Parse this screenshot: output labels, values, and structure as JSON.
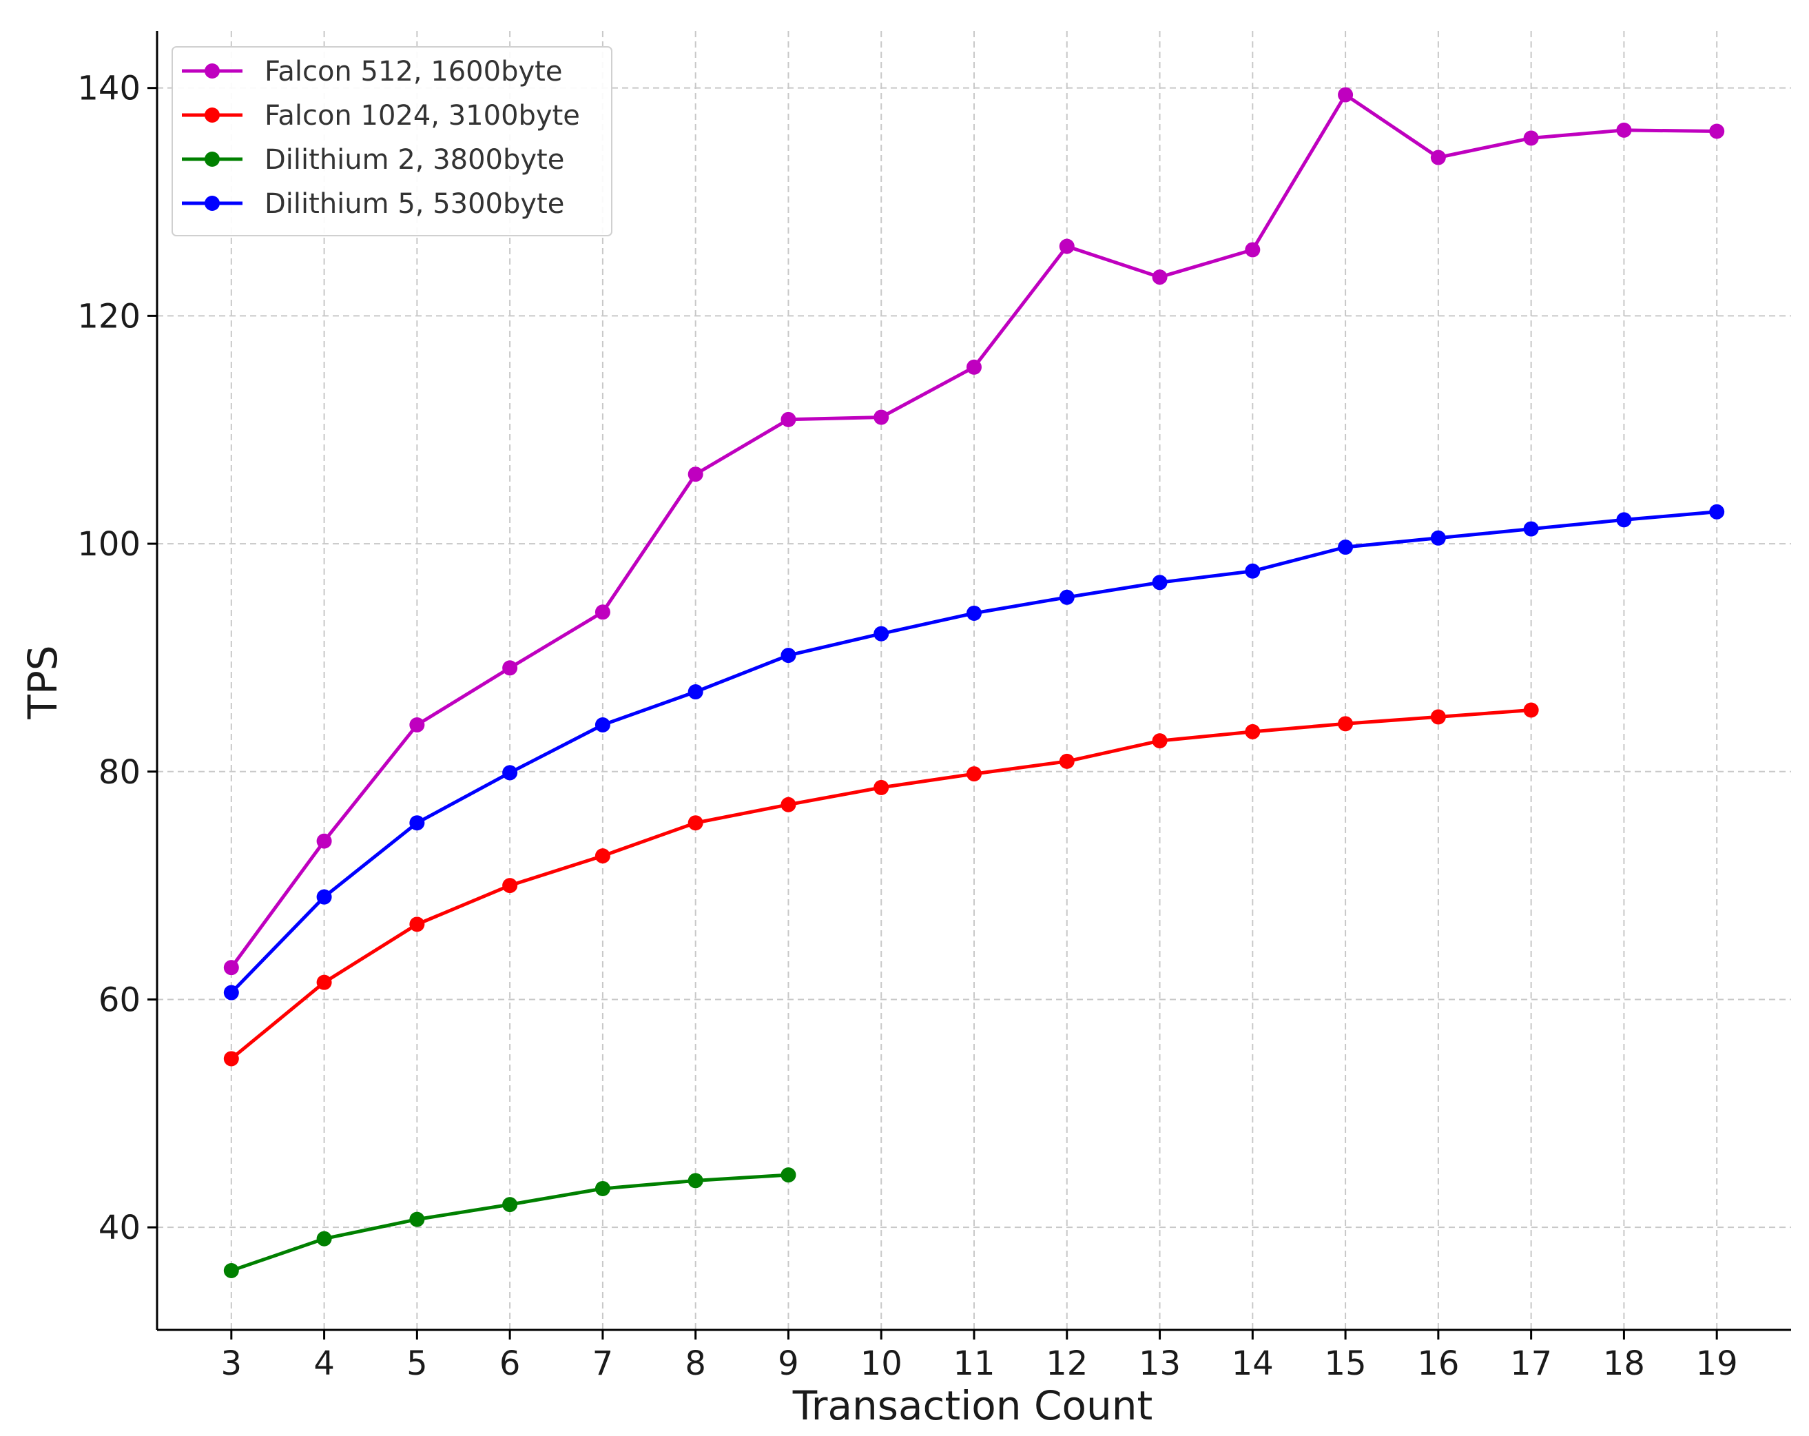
{
  "chart_data": {
    "type": "line",
    "title": "",
    "xlabel": "Transaction Count",
    "ylabel": "TPS",
    "x_ticks": [
      3,
      4,
      5,
      6,
      7,
      8,
      9,
      10,
      11,
      12,
      13,
      14,
      15,
      16,
      17,
      18,
      19
    ],
    "y_ticks": [
      40,
      60,
      80,
      100,
      120,
      140
    ],
    "xlim": [
      2.2,
      19.8
    ],
    "ylim": [
      31,
      145
    ],
    "grid": true,
    "legend_position": "top-left",
    "series": [
      {
        "name": "Falcon 512, 1600byte",
        "color": "#bf00bf",
        "x": [
          3,
          4,
          5,
          6,
          7,
          8,
          9,
          10,
          11,
          12,
          13,
          14,
          15,
          16,
          17,
          18,
          19
        ],
        "values": [
          62.8,
          73.9,
          84.1,
          89.1,
          94.0,
          106.1,
          110.9,
          111.1,
          115.5,
          126.1,
          123.4,
          125.8,
          139.4,
          133.9,
          135.6,
          136.3,
          136.2
        ]
      },
      {
        "name": "Falcon 1024, 3100byte",
        "color": "#ff0000",
        "x": [
          3,
          4,
          5,
          6,
          7,
          8,
          9,
          10,
          11,
          12,
          13,
          14,
          15,
          16,
          17
        ],
        "values": [
          54.8,
          61.5,
          66.6,
          70.0,
          72.6,
          75.5,
          77.1,
          78.6,
          79.8,
          80.9,
          82.7,
          83.5,
          84.2,
          84.8,
          85.4
        ]
      },
      {
        "name": "Dilithium 2, 3800byte",
        "color": "#008000",
        "x": [
          3,
          4,
          5,
          6,
          7,
          8,
          9
        ],
        "values": [
          36.2,
          39.0,
          40.7,
          42.0,
          43.4,
          44.1,
          44.6
        ]
      },
      {
        "name": "Dilithium 5, 5300byte",
        "color": "#0000ff",
        "x": [
          3,
          4,
          5,
          6,
          7,
          8,
          9,
          10,
          11,
          12,
          13,
          14,
          15,
          16,
          17,
          18,
          19
        ],
        "values": [
          60.6,
          69.0,
          75.5,
          79.9,
          84.1,
          87.0,
          90.2,
          92.1,
          93.9,
          95.3,
          96.6,
          97.6,
          99.7,
          100.5,
          101.3,
          102.1,
          102.8
        ]
      }
    ]
  }
}
